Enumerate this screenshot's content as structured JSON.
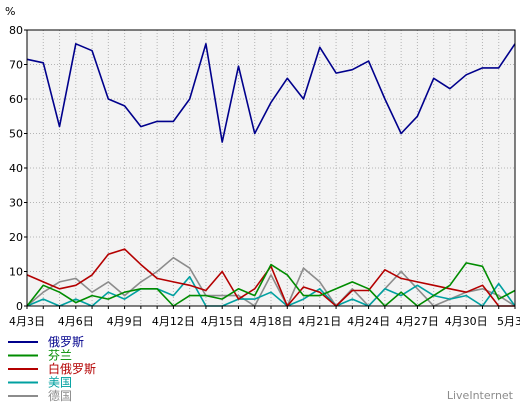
{
  "chart_data": {
    "type": "line",
    "ylabel": "%",
    "ylim": [
      0,
      80
    ],
    "yticks": [
      "0",
      "10",
      "20",
      "30",
      "40",
      "50",
      "60",
      "70",
      "80"
    ],
    "xticks": [
      "4月3日",
      "4月6日",
      "4月9日",
      "4月12日",
      "4月15日",
      "4月18日",
      "4月21日",
      "4月24日",
      "4月27日",
      "4月30日",
      "5月3日"
    ],
    "grid": true,
    "legend_position": "bottom-left",
    "colors": {
      "plot_background": "#f3f3f3",
      "grid": "#b4b4b4",
      "axis": "#000000"
    },
    "series": [
      {
        "name": "俄罗斯",
        "color": "#00008c",
        "values": [
          71.5,
          70.5,
          52,
          76,
          74,
          60,
          58,
          52,
          53.5,
          53.5,
          60,
          76,
          47.5,
          69.5,
          50,
          59,
          66,
          60,
          75,
          67.5,
          68.5,
          71,
          60,
          50,
          55,
          66,
          63,
          67,
          69,
          69,
          76
        ]
      },
      {
        "name": "芬兰",
        "color": "#008c00",
        "values": [
          0,
          6,
          4,
          1,
          3,
          2,
          4,
          5,
          5,
          0,
          3,
          3,
          2,
          5,
          3,
          12,
          9,
          3,
          3,
          5,
          7,
          5,
          0,
          4,
          0,
          3,
          6,
          12.5,
          11.5,
          2,
          4.5
        ]
      },
      {
        "name": "白俄罗斯",
        "color": "#b40000",
        "values": [
          9,
          7,
          5,
          6,
          9,
          15,
          16.5,
          12,
          8,
          7,
          6,
          4.5,
          10,
          2,
          5,
          11.5,
          0,
          5.5,
          4,
          0,
          4.5,
          4.5,
          10.5,
          8,
          7,
          6,
          5,
          4,
          6,
          0,
          0
        ]
      },
      {
        "name": "美国",
        "color": "#00a0a0",
        "values": [
          0,
          2,
          0,
          2,
          0,
          4,
          2,
          5,
          5,
          3,
          8.5,
          0,
          0,
          2,
          2,
          4,
          0,
          2,
          5,
          0,
          2,
          0,
          5,
          3,
          6,
          3,
          2,
          3,
          0,
          6.5,
          0
        ]
      },
      {
        "name": "德国",
        "color": "#8c8c8c",
        "values": [
          0,
          4,
          7,
          8,
          4,
          7,
          3,
          7,
          10,
          14,
          11,
          3,
          3,
          3,
          0,
          9,
          0,
          11,
          7,
          0,
          5,
          0,
          5,
          10,
          5,
          0,
          2,
          4,
          5,
          3,
          0
        ]
      }
    ]
  },
  "footer": {
    "brand": "LiveInternet"
  }
}
